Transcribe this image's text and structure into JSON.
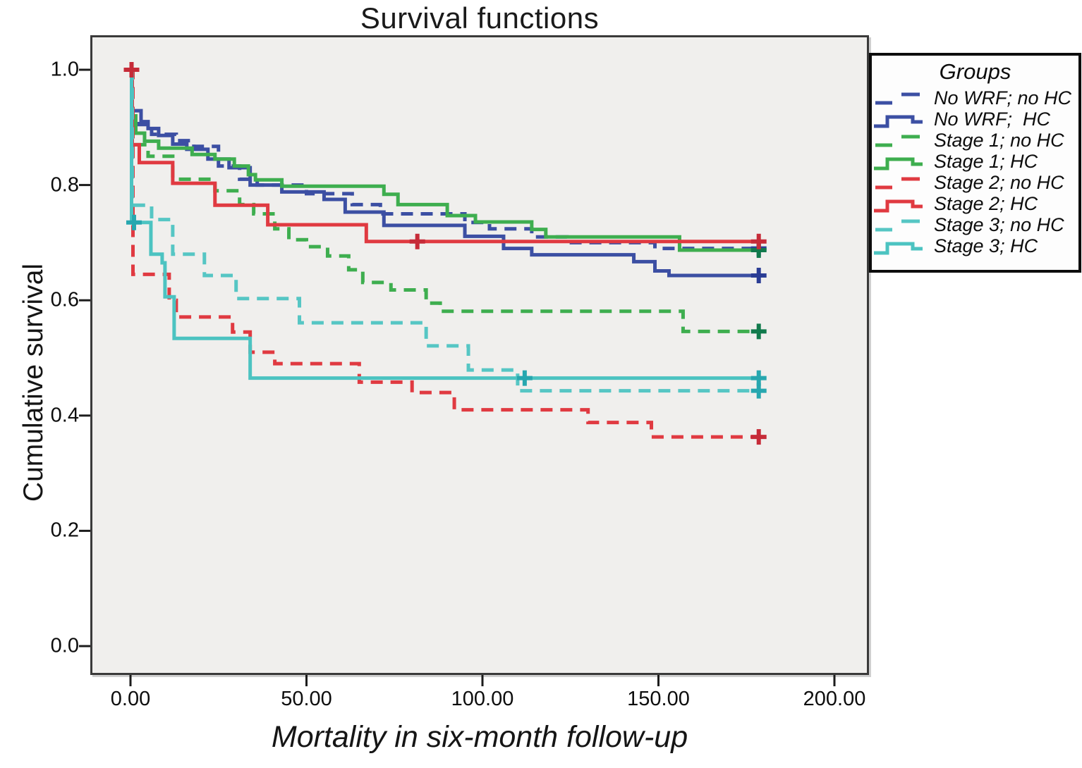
{
  "title": "Survival functions",
  "axes": {
    "x": {
      "label": "Mortality in six-month follow-up",
      "tick_labels": [
        "0.00",
        "50.00",
        "100.00",
        "150.00",
        "200.00"
      ],
      "tick_values": [
        0,
        50,
        100,
        150,
        200
      ],
      "range": [
        0,
        200
      ]
    },
    "y": {
      "label": "Cumulative survival",
      "tick_labels": [
        "1.0",
        "0.8",
        "0.6",
        "0.4",
        "0.2",
        "0.0"
      ],
      "tick_values": [
        1.0,
        0.8,
        0.6,
        0.4,
        0.2,
        0.0
      ],
      "range": [
        0,
        1
      ]
    }
  },
  "legend": {
    "title": "Groups",
    "entries": [
      {
        "label": "No WRF; no HC",
        "color": "#3c4fa3",
        "style": "dashed"
      },
      {
        "label": "No WRF;  HC",
        "color": "#3c4fa3",
        "style": "solid"
      },
      {
        "label": "Stage 1; no HC",
        "color": "#3eae4f",
        "style": "dashed"
      },
      {
        "label": "Stage 1; HC",
        "color": "#3eae4f",
        "style": "solid"
      },
      {
        "label": "Stage 2; no HC",
        "color": "#e03a41",
        "style": "dashed"
      },
      {
        "label": "Stage 2; HC",
        "color": "#e03a41",
        "style": "solid"
      },
      {
        "label": "Stage 3; no HC",
        "color": "#56c6c4",
        "style": "dashed"
      },
      {
        "label": "Stage 3; HC",
        "color": "#4cc3c1",
        "style": "solid"
      }
    ]
  },
  "colors": {
    "plot_background": "#f0efed",
    "plot_border": "#3a3a3a",
    "blue": "#3c4fa3",
    "green": "#3eae4f",
    "red": "#e03a41",
    "teal": "#53c6c6",
    "cross_blue": "#2a3c94",
    "cross_green": "#117a4c",
    "cross_red": "#c62b38",
    "cross_teal": "#27a7af"
  },
  "chart_data": {
    "type": "line",
    "subtype": "kaplan-meier-step",
    "title": "Survival functions",
    "xlabel": "Mortality in six-month follow-up",
    "ylabel": "Cumulative survival",
    "xlim": [
      0,
      200
    ],
    "ylim": [
      0,
      1
    ],
    "grid": false,
    "legend_position": "right",
    "series": [
      {
        "name": "No WRF; no HC",
        "color": "#3c4fa3",
        "cross_color": "#2a3c94",
        "style": "dashed",
        "points": [
          [
            0,
            1
          ],
          [
            0.5,
            0.92
          ],
          [
            2,
            0.905
          ],
          [
            6,
            0.888
          ],
          [
            13,
            0.877
          ],
          [
            18,
            0.867
          ],
          [
            25,
            0.833
          ],
          [
            31,
            0.81
          ],
          [
            36,
            0.8
          ],
          [
            50,
            0.785
          ],
          [
            63,
            0.766
          ],
          [
            71,
            0.75
          ],
          [
            95,
            0.735
          ],
          [
            102,
            0.724
          ],
          [
            114,
            0.71
          ],
          [
            124,
            0.7
          ],
          [
            149,
            0.69
          ],
          [
            179,
            0.69
          ]
        ],
        "censors": [
          [
            178.5,
            0.69
          ]
        ]
      },
      {
        "name": "No WRF;  HC",
        "color": "#3c4fa3",
        "cross_color": "#2a3c94",
        "style": "solid",
        "points": [
          [
            0,
            1
          ],
          [
            0.5,
            0.929
          ],
          [
            3,
            0.91
          ],
          [
            5,
            0.898
          ],
          [
            8,
            0.886
          ],
          [
            12,
            0.871
          ],
          [
            16,
            0.862
          ],
          [
            22,
            0.845
          ],
          [
            28,
            0.83
          ],
          [
            34,
            0.8
          ],
          [
            43,
            0.788
          ],
          [
            55,
            0.775
          ],
          [
            61,
            0.753
          ],
          [
            72,
            0.73
          ],
          [
            95,
            0.711
          ],
          [
            106,
            0.69
          ],
          [
            114,
            0.679
          ],
          [
            143,
            0.667
          ],
          [
            149,
            0.651
          ],
          [
            153,
            0.643
          ],
          [
            179,
            0.643
          ]
        ],
        "censors": [
          [
            178.5,
            0.643
          ]
        ]
      },
      {
        "name": "Stage 1; no HC",
        "color": "#3eae4f",
        "cross_color": "#117a4c",
        "style": "dashed",
        "points": [
          [
            0,
            1
          ],
          [
            0.5,
            0.87
          ],
          [
            5,
            0.85
          ],
          [
            12,
            0.81
          ],
          [
            24,
            0.79
          ],
          [
            31,
            0.766
          ],
          [
            35,
            0.75
          ],
          [
            41,
            0.724
          ],
          [
            45,
            0.705
          ],
          [
            50,
            0.693
          ],
          [
            56,
            0.677
          ],
          [
            62,
            0.653
          ],
          [
            66,
            0.631
          ],
          [
            74,
            0.618
          ],
          [
            84,
            0.595
          ],
          [
            88,
            0.581
          ],
          [
            157,
            0.546
          ],
          [
            179,
            0.546
          ]
        ],
        "censors": [
          [
            178.5,
            0.546
          ]
        ]
      },
      {
        "name": "Stage 1; HC",
        "color": "#3eae4f",
        "cross_color": "#117a4c",
        "style": "solid",
        "points": [
          [
            0,
            1
          ],
          [
            0.5,
            0.92
          ],
          [
            1.5,
            0.89
          ],
          [
            4,
            0.876
          ],
          [
            8,
            0.864
          ],
          [
            17.5,
            0.853
          ],
          [
            24,
            0.845
          ],
          [
            29.5,
            0.833
          ],
          [
            33.5,
            0.818
          ],
          [
            35.5,
            0.809
          ],
          [
            43,
            0.798
          ],
          [
            72,
            0.784
          ],
          [
            76,
            0.766
          ],
          [
            90,
            0.747
          ],
          [
            98,
            0.736
          ],
          [
            114,
            0.723
          ],
          [
            118,
            0.71
          ],
          [
            156,
            0.687
          ],
          [
            179,
            0.687
          ]
        ],
        "censors": [
          [
            178.5,
            0.687
          ]
        ]
      },
      {
        "name": "Stage 2; no HC",
        "color": "#e03a41",
        "cross_color": "#c62b38",
        "style": "dashed",
        "points": [
          [
            0,
            1
          ],
          [
            0.7,
            0.645
          ],
          [
            11,
            0.6
          ],
          [
            13,
            0.571
          ],
          [
            29,
            0.545
          ],
          [
            34,
            0.51
          ],
          [
            41,
            0.49
          ],
          [
            65,
            0.458
          ],
          [
            80,
            0.44
          ],
          [
            92,
            0.41
          ],
          [
            130,
            0.388
          ],
          [
            148,
            0.363
          ],
          [
            179,
            0.363
          ]
        ],
        "censors": [
          [
            178.5,
            0.363
          ]
        ]
      },
      {
        "name": "Stage 2; HC",
        "color": "#e03a41",
        "cross_color": "#c62b38",
        "style": "solid",
        "points": [
          [
            0,
            1
          ],
          [
            0.5,
            0.87
          ],
          [
            2.5,
            0.839
          ],
          [
            12,
            0.803
          ],
          [
            24,
            0.765
          ],
          [
            39,
            0.731
          ],
          [
            67,
            0.702
          ],
          [
            179,
            0.702
          ]
        ],
        "censors": [
          [
            0.3,
            1.0
          ],
          [
            81.5,
            0.702
          ],
          [
            178.5,
            0.702
          ]
        ]
      },
      {
        "name": "Stage 3; no HC",
        "color": "#56c6c4",
        "cross_color": "#27a7af",
        "style": "dashed",
        "points": [
          [
            0,
            1
          ],
          [
            0.5,
            0.765
          ],
          [
            6,
            0.74
          ],
          [
            12,
            0.68
          ],
          [
            21,
            0.643
          ],
          [
            30,
            0.603
          ],
          [
            48,
            0.561
          ],
          [
            84,
            0.521
          ],
          [
            96,
            0.479
          ],
          [
            110,
            0.443
          ],
          [
            179,
            0.443
          ]
        ],
        "censors": [
          [
            178.5,
            0.443
          ]
        ]
      },
      {
        "name": "Stage 3; HC",
        "color": "#4cc3c1",
        "cross_color": "#27a7af",
        "style": "solid",
        "points": [
          [
            0,
            1
          ],
          [
            0.3,
            0.735
          ],
          [
            5.8,
            0.68
          ],
          [
            9,
            0.665
          ],
          [
            9.8,
            0.606
          ],
          [
            12.4,
            0.534
          ],
          [
            34,
            0.465
          ],
          [
            179,
            0.465
          ]
        ],
        "censors": [
          [
            1,
            0.735
          ],
          [
            112,
            0.465
          ],
          [
            178.5,
            0.465
          ]
        ]
      }
    ]
  }
}
